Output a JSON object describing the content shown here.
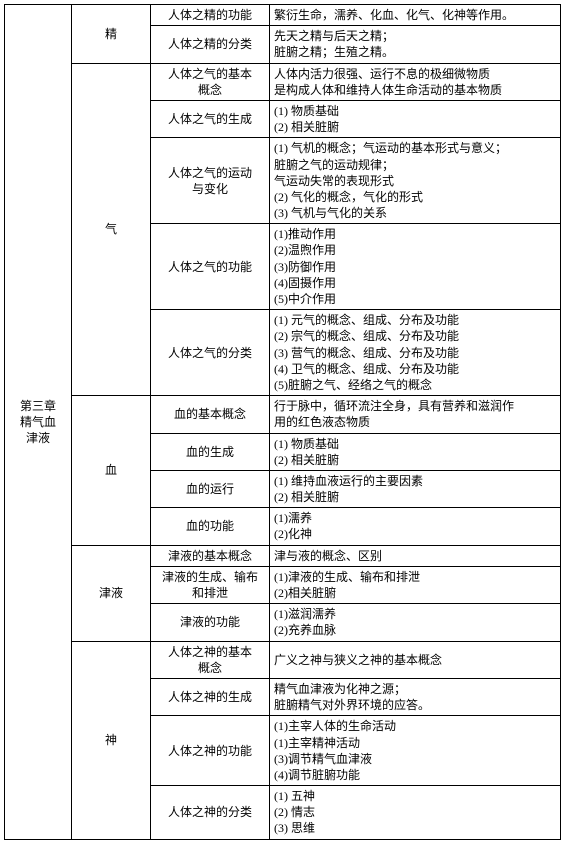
{
  "chapter": "第三章\n精气血\n津液",
  "sections": [
    {
      "title": "精",
      "rows": [
        {
          "topic": "人体之精的功能",
          "content": "繁衍生命，濡养、化血、化气、化神等作用。"
        },
        {
          "topic": "人体之精的分类",
          "content": "先天之精与后天之精；\n脏腑之精；生殖之精。"
        }
      ]
    },
    {
      "title": "气",
      "rows": [
        {
          "topic": "人体之气的基本\n概念",
          "content": "人体内活力很强、运行不息的极细微物质\n是构成人体和维持人体生命活动的基本物质"
        },
        {
          "topic": "人体之气的生成",
          "content": "(1) 物质基础\n(2) 相关脏腑"
        },
        {
          "topic": "人体之气的运动\n与变化",
          "content": "(1) 气机的概念；气运动的基本形式与意义；\n脏腑之气的运动规律；\n气运动失常的表现形式\n(2) 气化的概念，气化的形式\n(3) 气机与气化的关系"
        },
        {
          "topic": "人体之气的功能",
          "content": "(1)推动作用\n(2)温煦作用\n(3)防御作用\n(4)固摄作用\n(5)中介作用"
        },
        {
          "topic": "人体之气的分类",
          "content": "(1) 元气的概念、组成、分布及功能\n(2) 宗气的概念、组成、分布及功能\n(3) 营气的概念、组成、分布及功能\n(4) 卫气的概念、组成、分布及功能\n(5)脏腑之气、经络之气的概念"
        }
      ]
    },
    {
      "title": "血",
      "rows": [
        {
          "topic": "血的基本概念",
          "content": "行于脉中，循环流注全身，具有营养和滋润作\n用的红色液态物质"
        },
        {
          "topic": "血的生成",
          "content": "(1) 物质基础\n(2) 相关脏腑"
        },
        {
          "topic": "血的运行",
          "content": "(1) 维持血液运行的主要因素\n(2) 相关脏腑"
        },
        {
          "topic": "血的功能",
          "content": "(1)濡养\n(2)化神"
        }
      ]
    },
    {
      "title": "津液",
      "rows": [
        {
          "topic": "津液的基本概念",
          "content": "津与液的概念、区别"
        },
        {
          "topic": "津液的生成、输布\n和排泄",
          "content": "(1)津液的生成、输布和排泄\n(2)相关脏腑"
        },
        {
          "topic": "津液的功能",
          "content": "(1)滋润濡养\n(2)充养血脉"
        }
      ]
    },
    {
      "title": "神",
      "rows": [
        {
          "topic": "人体之神的基本\n概念",
          "content": "广义之神与狭义之神的基本概念"
        },
        {
          "topic": "人体之神的生成",
          "content": "精气血津液为化神之源；\n脏腑精气对外界环境的应答。"
        },
        {
          "topic": "人体之神的功能",
          "content": "(1)主宰人体的生命活动\n(1)主宰精神活动\n(3)调节精气血津液\n(4)调节脏腑功能"
        },
        {
          "topic": "人体之神的分类",
          "content": "(1) 五神\n(2) 情志\n(3) 思维"
        }
      ]
    }
  ]
}
